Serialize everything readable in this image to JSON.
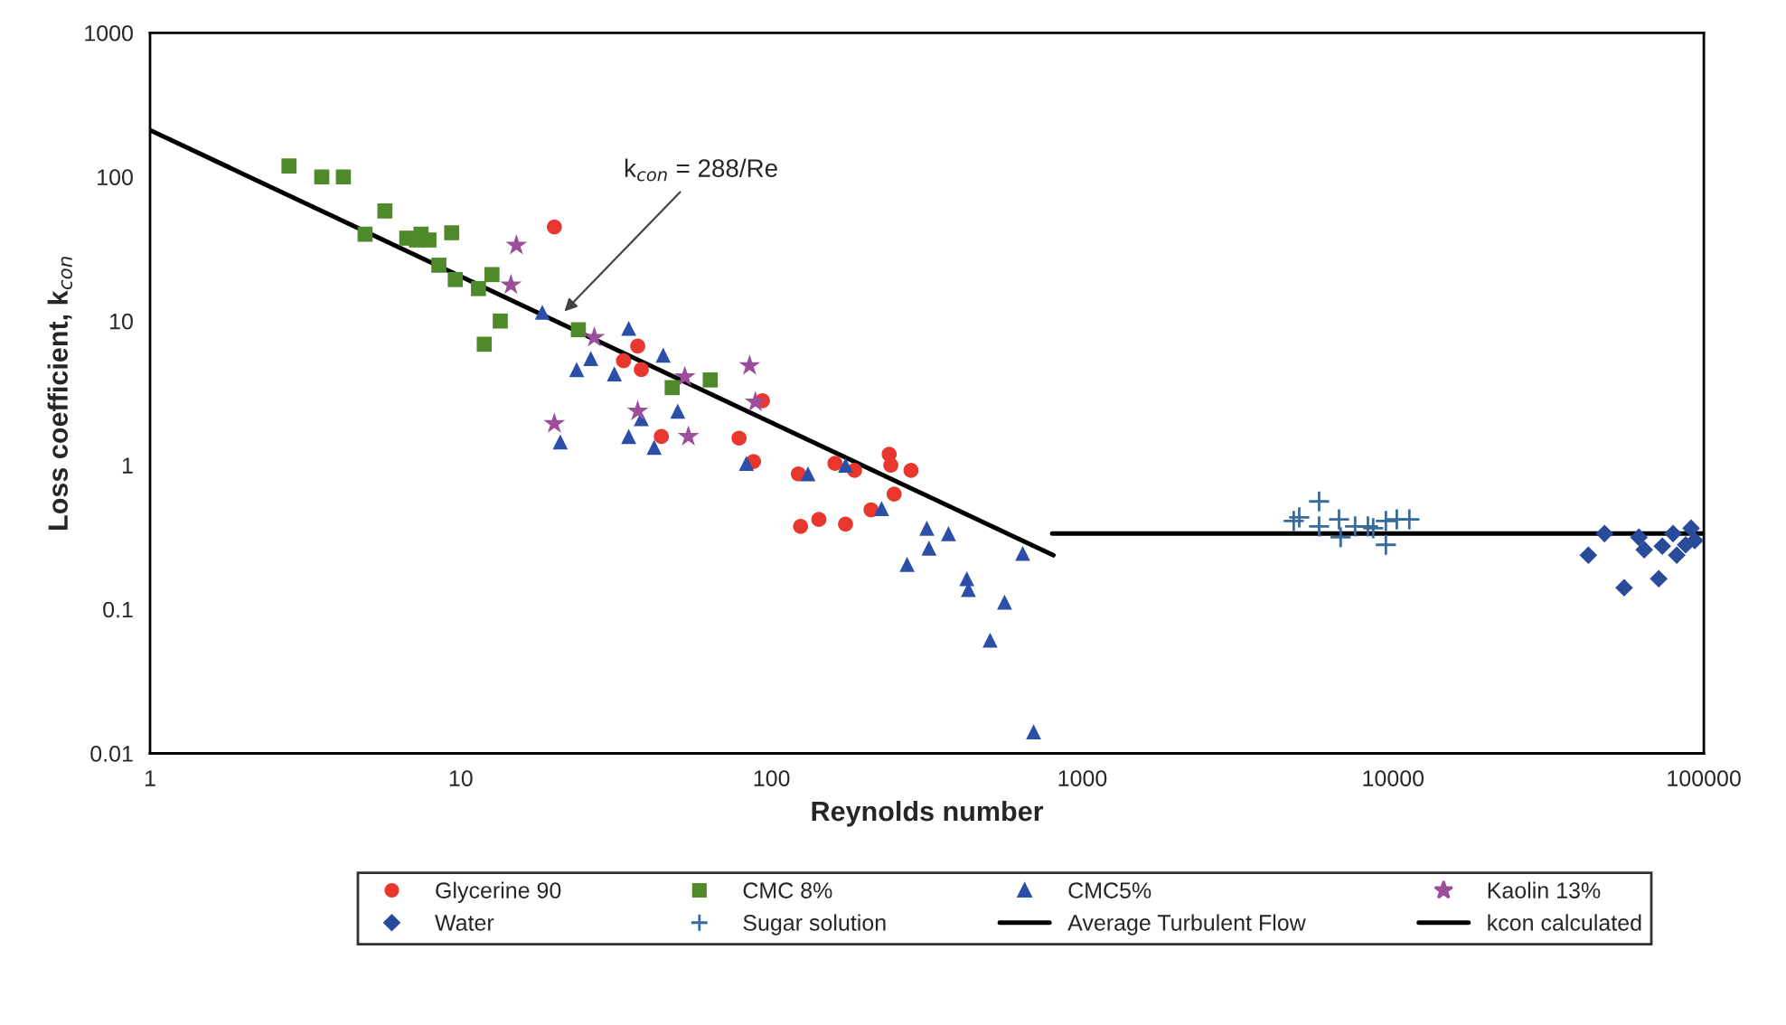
{
  "chart_data": {
    "type": "scatter",
    "xlabel": "Reynolds number",
    "ylabel": "Loss coefficient, k$_{con}$",
    "log": "xy",
    "xlim": [
      1,
      100000
    ],
    "ylim": [
      0.01,
      1000
    ],
    "xticks": [
      1,
      10,
      100,
      1000,
      10000,
      100000
    ],
    "yticks": [
      0.01,
      0.1,
      1,
      10,
      100,
      1000
    ],
    "grid": false,
    "legend": "bottom",
    "annotations": [
      {
        "text": "k$_{con}$ = 288/Re",
        "x": 21,
        "y": 11
      }
    ],
    "series": [
      {
        "name": "Glycerine 90",
        "type": "scatter",
        "marker": "circle",
        "color": "#e8372e",
        "x": [
          20,
          37.1,
          33.4,
          38.1,
          93.5,
          44.2,
          78.6,
          87.5,
          122,
          160,
          185,
          239,
          242,
          281,
          248,
          209,
          124,
          142,
          173
        ],
        "values": [
          45,
          6.7,
          5.3,
          4.6,
          2.8,
          1.58,
          1.54,
          1.06,
          0.87,
          1.03,
          0.92,
          1.19,
          1.0,
          0.92,
          0.63,
          0.49,
          0.376,
          0.42,
          0.39
        ]
      },
      {
        "name": "CMC 8%",
        "type": "scatter",
        "marker": "square",
        "color": "#4e8a2a",
        "x": [
          2.8,
          3.57,
          4.19,
          4.92,
          5.7,
          6.7,
          7.2,
          7.45,
          7.9,
          9.35,
          8.5,
          9.6,
          11.4,
          12.6,
          13.4,
          11.9,
          23.9,
          47.9,
          63.5
        ],
        "values": [
          119,
          100,
          100,
          40,
          58,
          37.6,
          36.5,
          40,
          36.5,
          41,
          24.4,
          19.4,
          16.8,
          21,
          10,
          6.9,
          8.7,
          3.45,
          3.9
        ]
      },
      {
        "name": "CMC5%",
        "type": "scatter",
        "marker": "triangle",
        "color": "#2b4ea8",
        "x": [
          18.3,
          20.9,
          23.6,
          26.2,
          31.2,
          34.7,
          44.8,
          38.1,
          34.7,
          41.9,
          49.9,
          83,
          131,
          173,
          226,
          273,
          316,
          371,
          321,
          425,
          430,
          562,
          505,
          643,
          697
        ],
        "values": [
          11.5,
          1.45,
          4.6,
          5.5,
          4.3,
          8.9,
          5.8,
          2.1,
          1.58,
          1.33,
          2.37,
          1.03,
          0.87,
          1.0,
          0.5,
          0.205,
          0.365,
          0.335,
          0.266,
          0.163,
          0.137,
          0.112,
          0.061,
          0.244,
          0.0141
        ]
      },
      {
        "name": "Kaolin 13%",
        "type": "scatter",
        "marker": "star",
        "color": "#9b4f9b",
        "x": [
          15.1,
          14.5,
          20,
          26.9,
          37.1,
          54,
          52.6,
          85,
          88.7
        ],
        "values": [
          33.5,
          17.8,
          1.94,
          7.7,
          2.37,
          1.58,
          4.1,
          4.9,
          2.74
        ]
      },
      {
        "name": "Water",
        "type": "scatter",
        "marker": "diamond",
        "color": "#2a4a9a",
        "x": [
          42500,
          47900,
          55400,
          61800,
          64300,
          71600,
          73500,
          79600,
          81800,
          87400,
          91000,
          93500
        ],
        "values": [
          0.237,
          0.335,
          0.141,
          0.316,
          0.259,
          0.163,
          0.274,
          0.335,
          0.237,
          0.28,
          0.365,
          0.3
        ]
      },
      {
        "name": "Sugar solution",
        "type": "scatter",
        "marker": "cross",
        "color": "#3a6a9a",
        "x": [
          4790,
          4990,
          5780,
          5780,
          6700,
          6780,
          7550,
          8300,
          8630,
          9480,
          9480,
          10280,
          11280
        ],
        "values": [
          0.41,
          0.434,
          0.56,
          0.376,
          0.42,
          0.316,
          0.376,
          0.376,
          0.365,
          0.41,
          0.28,
          0.42,
          0.42
        ]
      },
      {
        "name": "Average Turbulent Flow",
        "type": "line",
        "marker": "none",
        "line_style": "solid",
        "color": "#000000",
        "x": [
          800,
          100000
        ],
        "values": [
          0.335,
          0.335
        ]
      },
      {
        "name": "kcon calculated",
        "type": "line",
        "marker": "none",
        "line_style": "solid",
        "color": "#000000",
        "x": [
          1,
          807
        ],
        "values": [
          211,
          0.237
        ]
      }
    ]
  }
}
